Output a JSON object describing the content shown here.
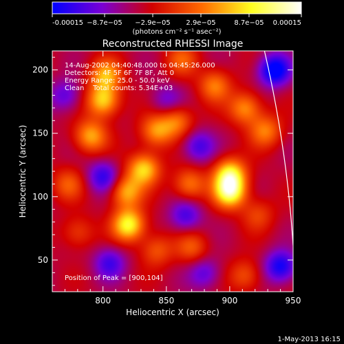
{
  "chart_data": {
    "type": "heatmap",
    "title": "Reconstructed RHESSI Image",
    "xlabel": "Heliocentric X (arcsec)",
    "ylabel": "Heliocentric Y (arcsec)",
    "xlim": [
      760,
      950
    ],
    "ylim": [
      25,
      215
    ],
    "x_ticks": [
      800,
      850,
      900,
      950
    ],
    "y_ticks": [
      50,
      100,
      150,
      200
    ],
    "colorbar": {
      "range": [
        -0.00015,
        0.00015
      ],
      "tick_values": [
        -0.00015,
        -8.7e-05,
        -2.9e-05,
        2.9e-05,
        8.7e-05,
        0.00015
      ],
      "tick_labels": [
        "-0.00015",
        "−8.7e−05",
        "−2.9e−05",
        "2.9e−05",
        "8.7e−05",
        "0.00015"
      ],
      "units": "(photons cm⁻² s⁻¹ asec⁻²)",
      "colors": [
        "#0000ff",
        "#7a00d4",
        "#d20000",
        "#ff6a00",
        "#ffff20",
        "#ffffff"
      ]
    },
    "annotations": [
      "14-Aug-2002 04:40:48.000 to 04:45:26.000",
      "Detectors: 4F 5F 6F 7F 8F, Att 0",
      "Energy Range: 25.0 - 50.0 keV",
      "Clean    Total counts: 5.34E+03"
    ],
    "peak_label": "Position of Peak = [900,104]",
    "peak": [
      900,
      104
    ],
    "limb": {
      "center_x": 0,
      "center_y": 0,
      "radius": 952
    },
    "sources": [
      {
        "x": 900,
        "y": 104,
        "value": 0.00015
      },
      {
        "x": 900,
        "y": 118,
        "value": 0.00013
      },
      {
        "x": 820,
        "y": 78,
        "value": 0.00014
      },
      {
        "x": 832,
        "y": 122,
        "value": 0.00012
      },
      {
        "x": 818,
        "y": 104,
        "value": 0.0001
      },
      {
        "x": 800,
        "y": 176,
        "value": 0.00012
      },
      {
        "x": 802,
        "y": 196,
        "value": 0.0001
      },
      {
        "x": 790,
        "y": 148,
        "value": 0.0001
      },
      {
        "x": 842,
        "y": 152,
        "value": 9e-05
      },
      {
        "x": 858,
        "y": 160,
        "value": 8e-05
      },
      {
        "x": 868,
        "y": 110,
        "value": 8e-05
      },
      {
        "x": 888,
        "y": 188,
        "value": 8e-05
      },
      {
        "x": 912,
        "y": 170,
        "value": 9e-05
      },
      {
        "x": 928,
        "y": 152,
        "value": 8e-05
      },
      {
        "x": 842,
        "y": 58,
        "value": 6e-05
      },
      {
        "x": 870,
        "y": 60,
        "value": 6e-05
      },
      {
        "x": 772,
        "y": 110,
        "value": 6e-05
      },
      {
        "x": 912,
        "y": 38,
        "value": 6e-05
      },
      {
        "x": 922,
        "y": 86,
        "value": 5e-05
      },
      {
        "x": 862,
        "y": 208,
        "value": 6e-05
      },
      {
        "x": 780,
        "y": 72,
        "value": 5e-05
      },
      {
        "x": 800,
        "y": 116,
        "value": -8e-05
      },
      {
        "x": 850,
        "y": 176,
        "value": -5e-05
      },
      {
        "x": 875,
        "y": 140,
        "value": -7e-05
      },
      {
        "x": 865,
        "y": 85,
        "value": -7e-05
      },
      {
        "x": 805,
        "y": 48,
        "value": -7e-05
      },
      {
        "x": 940,
        "y": 45,
        "value": -0.0001
      },
      {
        "x": 935,
        "y": 200,
        "value": -0.00012
      },
      {
        "x": 880,
        "y": 40,
        "value": -6e-05
      },
      {
        "x": 770,
        "y": 180,
        "value": -6e-05
      }
    ]
  },
  "footer": {
    "timestamp": "1-May-2013 16:15"
  }
}
